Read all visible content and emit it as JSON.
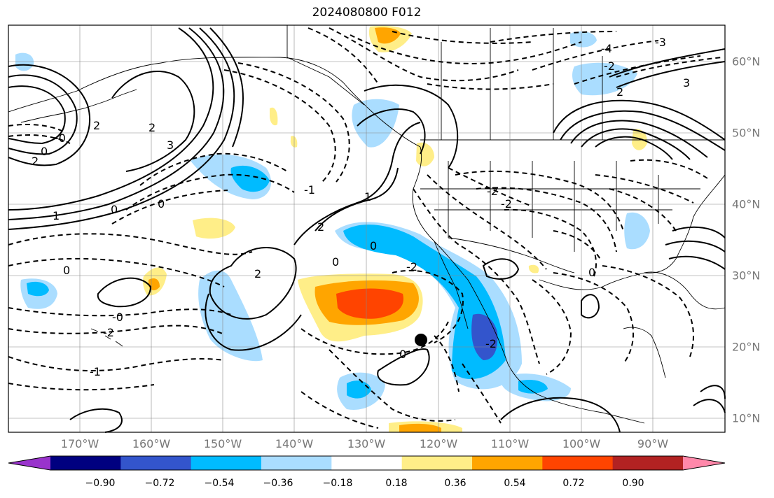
{
  "title": "2024080800 F012",
  "lon_labels": [
    "170°W",
    "160°W",
    "150°W",
    "140°W",
    "130°W",
    "120°W",
    "110°W",
    "100°W",
    "90°W"
  ],
  "lat_labels": [
    "60°N",
    "50°N",
    "40°N",
    "30°N",
    "20°N",
    "10°N"
  ],
  "colorbar": {
    "colors": [
      "#9933cc",
      "#000080",
      "#3355cc",
      "#00bbff",
      "#aaddff",
      "#ffffff",
      "#ffee88",
      "#ffa500",
      "#ff4400",
      "#b22222",
      "#ff88aa"
    ],
    "tick_labels": [
      "−0.90",
      "−0.72",
      "−0.54",
      "−0.36",
      "−0.18",
      "0.18",
      "0.36",
      "0.54",
      "0.72",
      "0.90"
    ]
  },
  "contour_labels": {
    "west_n2": "2",
    "west_p0": "0",
    "west_m0": "-0",
    "west_n3": "3",
    "west_2b": "2",
    "west_1": "1",
    "mid_0a": "0",
    "mid_0b": "0",
    "mid_m1": "-1",
    "mid_2": "2",
    "mid_2b": "2",
    "mid_1": "1",
    "sub_0": "0",
    "sub_m0": "-0",
    "sub_m2": "-2",
    "sub_m1": "-1",
    "sub_2": "2",
    "sub_0c": "0",
    "east_m4": "-4",
    "east_m3": "-3",
    "east_2": "2",
    "east_3": "3",
    "east_m2a": "-2",
    "east_m2b": "-2",
    "gulf_0": "0",
    "baja_m2": "-2",
    "low_0": "0",
    "conus_0": "0",
    "ca_m2": "-2",
    "ne_m2": "-2"
  },
  "marker": "black-dot"
}
